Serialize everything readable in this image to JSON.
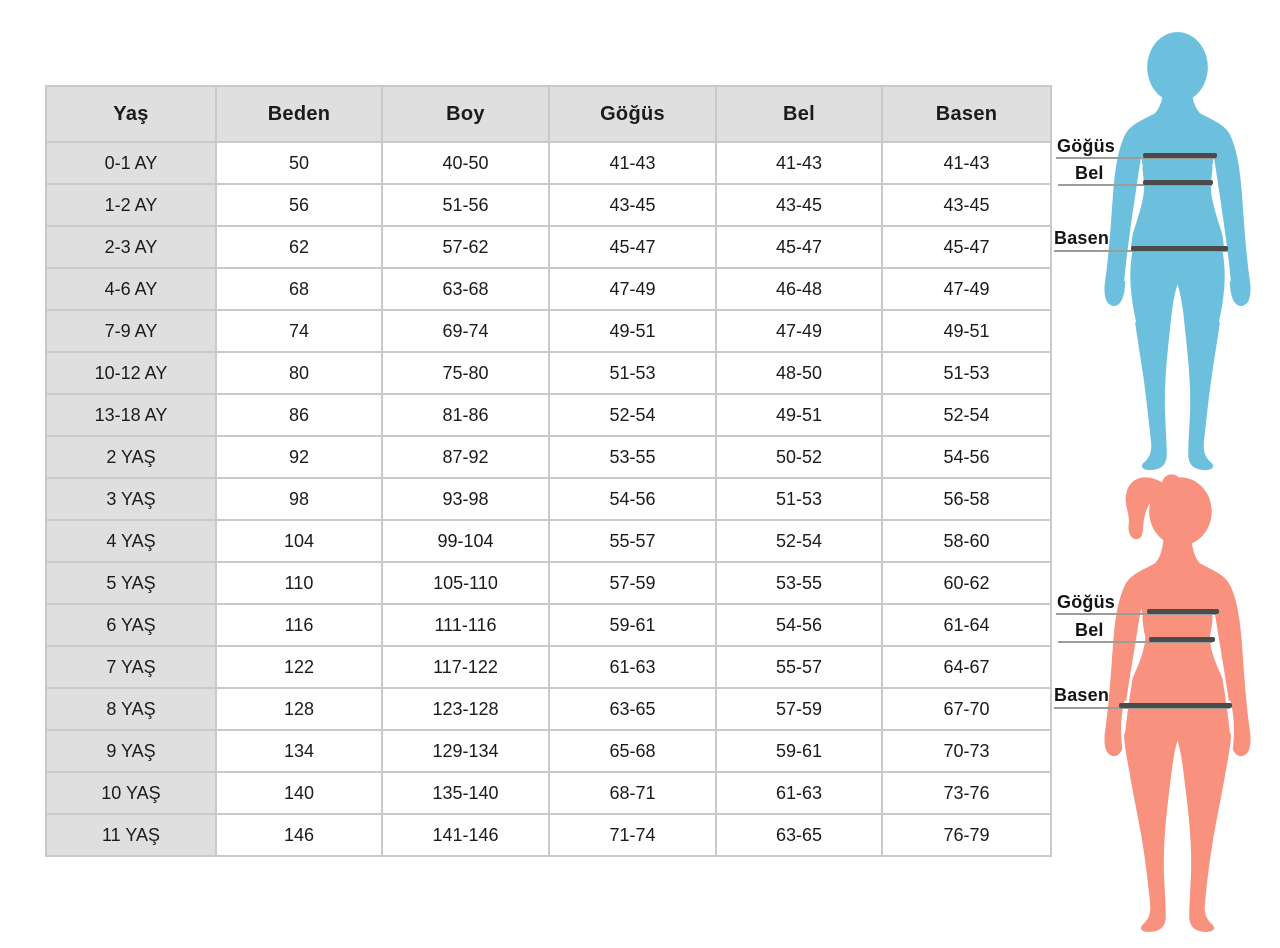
{
  "chart_data": {
    "type": "table",
    "columns": [
      "Yaş",
      "Beden",
      "Boy",
      "Göğüs",
      "Bel",
      "Basen"
    ],
    "rows": [
      [
        "0-1 AY",
        "50",
        "40-50",
        "41-43",
        "41-43",
        "41-43"
      ],
      [
        "1-2 AY",
        "56",
        "51-56",
        "43-45",
        "43-45",
        "43-45"
      ],
      [
        "2-3 AY",
        "62",
        "57-62",
        "45-47",
        "45-47",
        "45-47"
      ],
      [
        "4-6 AY",
        "68",
        "63-68",
        "47-49",
        "46-48",
        "47-49"
      ],
      [
        "7-9 AY",
        "74",
        "69-74",
        "49-51",
        "47-49",
        "49-51"
      ],
      [
        "10-12 AY",
        "80",
        "75-80",
        "51-53",
        "48-50",
        "51-53"
      ],
      [
        "13-18 AY",
        "86",
        "81-86",
        "52-54",
        "49-51",
        "52-54"
      ],
      [
        "2 YAŞ",
        "92",
        "87-92",
        "53-55",
        "50-52",
        "54-56"
      ],
      [
        "3 YAŞ",
        "98",
        "93-98",
        "54-56",
        "51-53",
        "56-58"
      ],
      [
        "4 YAŞ",
        "104",
        "99-104",
        "55-57",
        "52-54",
        "58-60"
      ],
      [
        "5 YAŞ",
        "110",
        "105-110",
        "57-59",
        "53-55",
        "60-62"
      ],
      [
        "6 YAŞ",
        "116",
        "111-116",
        "59-61",
        "54-56",
        "61-64"
      ],
      [
        "7 YAŞ",
        "122",
        "117-122",
        "61-63",
        "55-57",
        "64-67"
      ],
      [
        "8 YAŞ",
        "128",
        "123-128",
        "63-65",
        "57-59",
        "67-70"
      ],
      [
        "9 YAŞ",
        "134",
        "129-134",
        "65-68",
        "59-61",
        "70-73"
      ],
      [
        "10 YAŞ",
        "140",
        "135-140",
        "68-71",
        "61-63",
        "73-76"
      ],
      [
        "11 YAŞ",
        "146",
        "141-146",
        "71-74",
        "63-65",
        "76-79"
      ]
    ]
  },
  "figures": {
    "child": {
      "color": "#6cc0de",
      "chest_label": "Göğüs",
      "waist_label": "Bel",
      "hip_label": "Basen"
    },
    "girl": {
      "color": "#f8917d",
      "chest_label": "Göğüs",
      "waist_label": "Bel",
      "hip_label": "Basen"
    }
  },
  "colors": {
    "header_bg": "#dfdfdf",
    "row_label_bg": "#dfdfdf",
    "table_border": "#c9c9c9",
    "text": "#1b1b1b",
    "measure_guide_line": "#9c9c9c",
    "measure_body_line": "#4b4b4b"
  }
}
